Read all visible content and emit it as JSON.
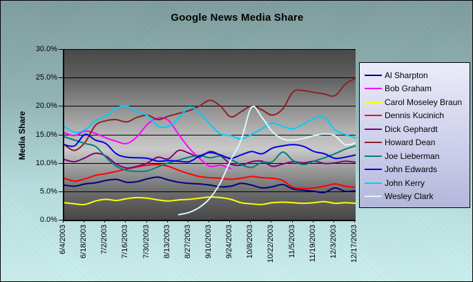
{
  "title": "Google News Media Share",
  "y_axis": {
    "title": "Media Share",
    "ticks": [
      "30.0%",
      "25.0%",
      "20.0%",
      "15.0%",
      "10.0%",
      "5.0%",
      "0.0%"
    ],
    "min": 0,
    "max": 30
  },
  "x_axis": {
    "labels": [
      "6/4/2003",
      "6/18/2003",
      "7/2/2003",
      "7/16/2003",
      "7/30/2003",
      "8/13/2003",
      "8/27/2003",
      "9/10/2003",
      "9/24/2003",
      "10/8/2003",
      "10/22/2003",
      "11/5/2003",
      "11/19/2003",
      "12/3/2003",
      "12/17/2003"
    ]
  },
  "colors": {
    "chart_background_top": "#7a9b9c",
    "chart_background_bottom": "#ccf2f2",
    "plot_background_dark": "#484848",
    "plot_background_light": "#c9c9c9",
    "legend_background": "#c9cbe9",
    "gridline": "#000000",
    "text": "#000000"
  },
  "chart_data": {
    "type": "line",
    "title": "Google News Media Share",
    "ylabel": "Media Share",
    "ylim": [
      0,
      30
    ],
    "y_tick_step": 5,
    "y_tick_format": "percent",
    "grid": true,
    "legend_position": "right",
    "smoothed_lines": true,
    "x": [
      "6/4/2003",
      "6/11/2003",
      "6/18/2003",
      "6/25/2003",
      "7/2/2003",
      "7/9/2003",
      "7/16/2003",
      "7/23/2003",
      "7/30/2003",
      "8/6/2003",
      "8/13/2003",
      "8/20/2003",
      "8/27/2003",
      "9/3/2003",
      "9/10/2003",
      "9/17/2003",
      "9/24/2003",
      "10/1/2003",
      "10/8/2003",
      "10/15/2003",
      "10/22/2003",
      "10/29/2003",
      "11/5/2003",
      "11/12/2003",
      "11/19/2003",
      "11/26/2003",
      "12/3/2003",
      "12/10/2003",
      "12/17/2003"
    ],
    "x_tick_labels": [
      "6/4/2003",
      "6/18/2003",
      "7/2/2003",
      "7/16/2003",
      "7/30/2003",
      "8/13/2003",
      "8/27/2003",
      "9/10/2003",
      "9/24/2003",
      "10/8/2003",
      "10/22/2003",
      "11/5/2003",
      "11/19/2003",
      "12/3/2003",
      "12/17/2003"
    ],
    "series": [
      {
        "name": "Al Sharpton",
        "color": "#000080",
        "values": [
          6.1,
          5.9,
          6.3,
          6.5,
          6.9,
          7.1,
          6.6,
          6.7,
          7.2,
          7.5,
          7.0,
          6.6,
          6.4,
          6.3,
          6.1,
          5.8,
          5.9,
          6.4,
          6.1,
          5.6,
          5.8,
          6.2,
          5.4,
          5.2,
          5.0,
          4.8,
          5.6,
          5.0,
          5.1
        ]
      },
      {
        "name": "Bob Graham",
        "color": "#ff00ff",
        "values": [
          15.3,
          14.8,
          15.6,
          15.2,
          14.4,
          13.8,
          13.4,
          14.6,
          16.8,
          17.9,
          17.5,
          15.0,
          12.6,
          10.8,
          9.4,
          9.6,
          9.0,
          null,
          null,
          null,
          null,
          null,
          null,
          null,
          null,
          null,
          null,
          null,
          null
        ]
      },
      {
        "name": "Carol Moseley Braun",
        "color": "#ffff00",
        "values": [
          3.0,
          2.8,
          2.7,
          3.3,
          3.6,
          3.4,
          3.7,
          3.9,
          3.8,
          3.5,
          3.3,
          3.5,
          3.6,
          3.8,
          4.0,
          3.9,
          3.6,
          3.0,
          2.8,
          2.7,
          3.0,
          3.1,
          3.0,
          2.9,
          3.0,
          3.2,
          2.9,
          3.0,
          2.9
        ]
      },
      {
        "name": "Dennis Kucinich",
        "color": "#ff0000",
        "values": [
          7.3,
          6.8,
          7.2,
          7.8,
          8.1,
          8.5,
          8.9,
          9.3,
          9.6,
          9.7,
          9.4,
          8.7,
          8.1,
          7.6,
          7.4,
          7.3,
          7.1,
          7.3,
          7.6,
          7.4,
          7.3,
          6.9,
          5.7,
          5.5,
          5.6,
          5.9,
          6.3,
          5.9,
          5.7
        ]
      },
      {
        "name": "Dick Gephardt",
        "color": "#800080",
        "values": [
          10.6,
          10.2,
          10.9,
          11.7,
          11.2,
          9.8,
          9.1,
          9.4,
          10.0,
          11.0,
          10.7,
          12.2,
          11.7,
          11.0,
          12.0,
          11.3,
          9.8,
          9.6,
          10.2,
          10.3,
          9.4,
          9.8,
          10.2,
          10.0,
          10.3,
          9.9,
          10.0,
          10.3,
          10.1
        ]
      },
      {
        "name": "Howard Dean",
        "color": "#8b2222",
        "values": [
          13.2,
          12.2,
          13.6,
          16.6,
          17.4,
          17.6,
          17.2,
          18.0,
          18.4,
          17.6,
          18.2,
          18.7,
          19.2,
          20.0,
          21.0,
          20.0,
          18.1,
          19.0,
          20.0,
          19.3,
          18.4,
          19.5,
          22.5,
          22.7,
          22.4,
          22.1,
          21.8,
          23.8,
          24.9
        ]
      },
      {
        "name": "Joe Lieberman",
        "color": "#008080",
        "values": [
          14.6,
          14.0,
          13.4,
          12.9,
          11.0,
          9.4,
          8.7,
          8.5,
          8.6,
          9.3,
          10.0,
          10.5,
          11.0,
          11.3,
          10.9,
          11.2,
          10.6,
          9.7,
          9.2,
          10.1,
          10.2,
          11.9,
          10.4,
          9.7,
          10.3,
          10.9,
          11.6,
          12.4,
          13.0
        ]
      },
      {
        "name": "John Edwards",
        "color": "#0000e6",
        "values": [
          13.2,
          13.0,
          15.0,
          14.0,
          13.4,
          11.6,
          11.0,
          10.9,
          10.8,
          10.3,
          10.4,
          10.3,
          10.2,
          11.2,
          11.8,
          11.4,
          10.8,
          11.4,
          12.0,
          11.6,
          12.6,
          13.0,
          13.2,
          12.9,
          12.0,
          11.6,
          10.8,
          11.0,
          11.4
        ]
      },
      {
        "name": "John Kerry",
        "color": "#00ccff",
        "values": [
          16.4,
          15.4,
          15.8,
          17.4,
          18.2,
          19.6,
          20.0,
          19.0,
          18.3,
          16.5,
          16.4,
          17.8,
          19.8,
          18.8,
          16.8,
          15.1,
          14.8,
          14.2,
          15.0,
          16.0,
          17.0,
          16.4,
          16.0,
          16.8,
          17.8,
          18.0,
          15.8,
          15.0,
          14.4
        ]
      },
      {
        "name": "Wesley Clark",
        "color": "#dcf8f8",
        "values": [
          null,
          null,
          null,
          null,
          null,
          null,
          null,
          null,
          null,
          null,
          null,
          0.9,
          1.3,
          2.2,
          3.8,
          6.5,
          10.5,
          14.0,
          19.8,
          18.0,
          15.5,
          14.2,
          14.0,
          14.3,
          14.8,
          15.1,
          14.8,
          13.2,
          13.5
        ]
      }
    ]
  }
}
